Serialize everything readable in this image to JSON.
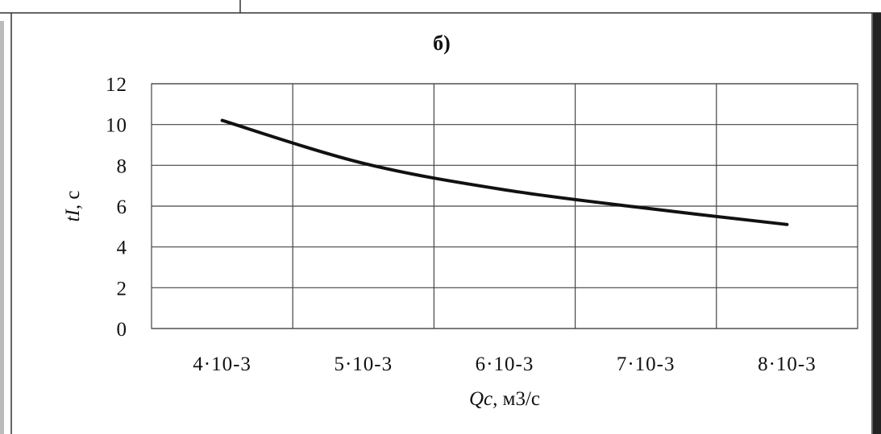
{
  "chart_data": {
    "type": "line",
    "title": "б)",
    "xlabel": {
      "italic": "Qc,",
      "rest": " м3/с"
    },
    "ylabel": {
      "italic": "tI,",
      "rest": " с"
    },
    "categories": [
      "4·10-3",
      "5·10-3",
      "6·10-3",
      "7·10-3",
      "8·10-3"
    ],
    "y_ticks": [
      "0",
      "2",
      "4",
      "6",
      "8",
      "10",
      "12"
    ],
    "ylim": [
      0,
      12
    ],
    "grid": true,
    "legend": "none",
    "series": [
      {
        "values": [
          10.2,
          8.1,
          6.8,
          5.9,
          5.1
        ],
        "color": "#111111"
      }
    ]
  }
}
